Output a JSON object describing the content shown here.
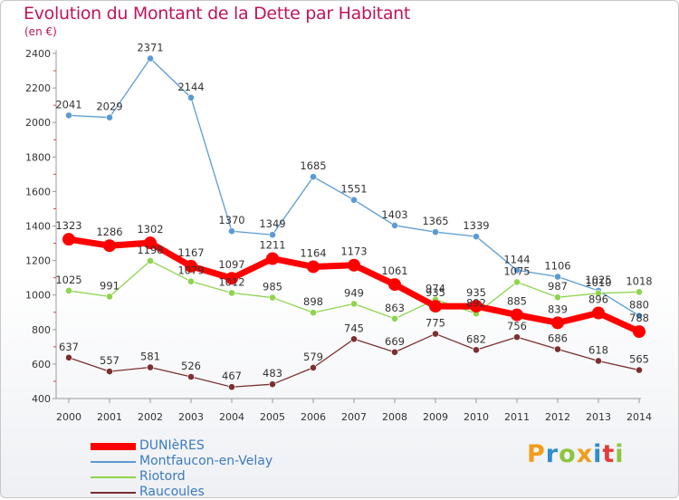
{
  "title": "Evolution du Montant de la Dette par Habitant",
  "unit_label": "(en €)",
  "brand": {
    "text": "Proxiti",
    "letters": [
      {
        "ch": "P",
        "color": "#f29d1b"
      },
      {
        "ch": "r",
        "color": "#2e8ccf"
      },
      {
        "ch": "o",
        "color": "#8cc63f"
      },
      {
        "ch": "x",
        "color": "#f29d1b"
      },
      {
        "ch": "i",
        "color": "#2e8ccf"
      },
      {
        "ch": "t",
        "color": "#e23c3c"
      },
      {
        "ch": "i",
        "color": "#8cc63f"
      }
    ]
  },
  "chart_data": {
    "type": "line",
    "title": "Evolution du Montant de la Dette par Habitant",
    "ylabel": "(en €)",
    "xlabel": "",
    "x": [
      "2000",
      "2001",
      "2002",
      "2003",
      "2004",
      "2005",
      "2006",
      "2007",
      "2008",
      "2009",
      "2010",
      "2011",
      "2012",
      "2013",
      "2014"
    ],
    "ylim": [
      400,
      2400
    ],
    "yticks": [
      400,
      600,
      800,
      1000,
      1200,
      1400,
      1600,
      1800,
      2000,
      2200,
      2400
    ],
    "grid": false,
    "legend_position": "bottom-left",
    "series": [
      {
        "name": "Montfaucon-en-Velay",
        "color": "#5b9bd5",
        "emphasis": false,
        "values": [
          2041,
          2029,
          2371,
          2144,
          1370,
          1349,
          1685,
          1551,
          1403,
          1365,
          1339,
          1144,
          1106,
          1025,
          880
        ]
      },
      {
        "name": "Riotord",
        "color": "#8ed44e",
        "emphasis": false,
        "values": [
          1025,
          991,
          1198,
          1079,
          1012,
          985,
          898,
          949,
          863,
          974,
          892,
          1075,
          987,
          1010,
          1018
        ]
      },
      {
        "name": "Raucoules",
        "color": "#7a3030",
        "emphasis": false,
        "values": [
          637,
          557,
          581,
          526,
          467,
          483,
          579,
          745,
          669,
          775,
          682,
          756,
          686,
          618,
          565
        ]
      },
      {
        "name": "DUNIèRES",
        "color": "#ff0000",
        "emphasis": true,
        "values": [
          1323,
          1286,
          1302,
          1167,
          1097,
          1211,
          1164,
          1173,
          1061,
          935,
          935,
          885,
          839,
          896,
          788
        ]
      }
    ]
  }
}
